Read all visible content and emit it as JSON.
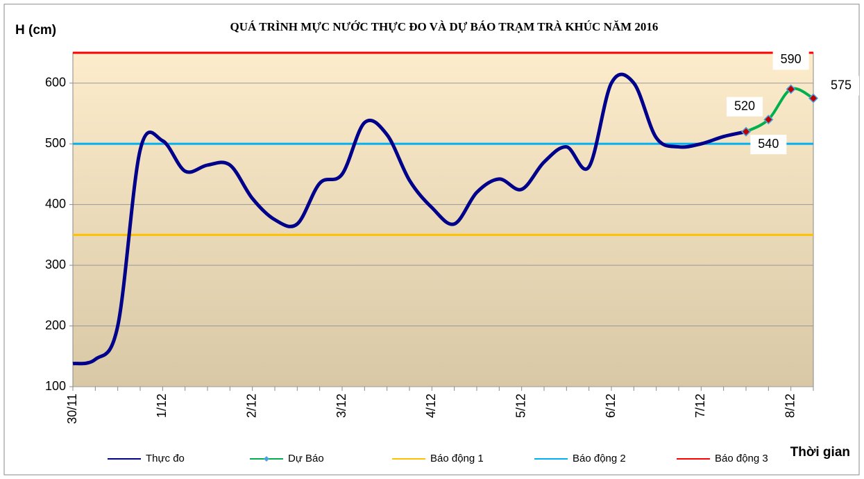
{
  "chart_data": {
    "type": "line",
    "title": "QUÁ TRÌNH MỰC NƯỚC THỰC ĐO VÀ DỰ BÁO TRẠM TRÀ KHÚC NĂM 2016",
    "y_label": "H (cm)",
    "x_label": "Thời gian",
    "categories": [
      "30/11",
      null,
      null,
      null,
      "1/12",
      null,
      null,
      null,
      "2/12",
      null,
      null,
      null,
      "3/12",
      null,
      null,
      null,
      "4/12",
      null,
      null,
      null,
      "5/12",
      null,
      null,
      null,
      "6/12",
      null,
      null,
      null,
      "7/12",
      null,
      null,
      null,
      "8/12",
      null
    ],
    "series": [
      {
        "name": "Thực đo",
        "color": "#00008b",
        "values": [
          138,
          145,
          200,
          490,
          505,
          455,
          465,
          465,
          410,
          375,
          368,
          435,
          450,
          535,
          515,
          440,
          395,
          368,
          420,
          442,
          425,
          470,
          495,
          462,
          600,
          600,
          510,
          495,
          500,
          512,
          520,
          null,
          null,
          null
        ]
      },
      {
        "name": "Dự Báo",
        "color": "#00b050",
        "values": [
          null,
          null,
          null,
          null,
          null,
          null,
          null,
          null,
          null,
          null,
          null,
          null,
          null,
          null,
          null,
          null,
          null,
          null,
          null,
          null,
          null,
          null,
          null,
          null,
          null,
          null,
          null,
          null,
          null,
          null,
          520,
          540,
          590,
          575
        ]
      }
    ],
    "thresholds": [
      {
        "name": "Báo động 1",
        "color": "#ffc000",
        "value": 350
      },
      {
        "name": "Báo động 2",
        "color": "#00b0f0",
        "value": 500
      },
      {
        "name": "Báo động 3",
        "color": "#ff0000",
        "value": 650
      }
    ],
    "ylim": [
      100,
      650
    ],
    "yticks": [
      100,
      200,
      300,
      400,
      500,
      600
    ],
    "grid": true
  }
}
